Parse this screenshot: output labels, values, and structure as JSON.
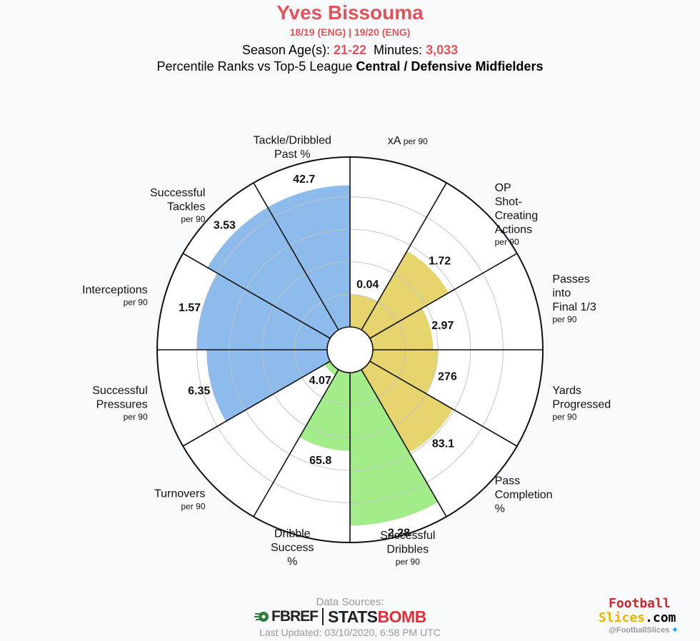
{
  "header": {
    "title": "Yves Bissouma",
    "seasons": "18/19 (ENG)  | 19/20 (ENG)",
    "season_age_label": "Season Age(s):",
    "season_age_value": "21-22",
    "minutes_label": "Minutes:",
    "minutes_value": "3,033",
    "subtitle_prefix": "Percentile Ranks vs Top-5 League",
    "subtitle_bold": "Central / Defensive Midfielders"
  },
  "chart_data": {
    "type": "polar-bar",
    "start_angle_deg": -90,
    "direction": "clockwise",
    "radius_range": [
      0,
      100
    ],
    "grid": true,
    "categories": [
      {
        "label": [
          "xA"
        ],
        "per90": "per 90",
        "value_label": "0.04",
        "percentile": 20,
        "group": "attacking"
      },
      {
        "label": [
          "OP",
          "Shot-",
          "Creating",
          "Actions"
        ],
        "per90": "per 90",
        "value_label": "1.72",
        "percentile": 56,
        "group": "attacking"
      },
      {
        "label": [
          "Passes",
          "into",
          "Final 1/3"
        ],
        "per90": "per 90",
        "value_label": "2.97",
        "percentile": 37,
        "group": "possession"
      },
      {
        "label": [
          "Yards",
          "Progressed"
        ],
        "per90": "per 90",
        "value_label": "276",
        "percentile": 40,
        "group": "possession"
      },
      {
        "label": [
          "Pass",
          "Completion",
          "%"
        ],
        "per90": "",
        "value_label": "83.1",
        "percentile": 59,
        "group": "possession"
      },
      {
        "label": [
          "Successful",
          "Dribbles"
        ],
        "per90": "per 90",
        "value_label": "2.28",
        "percentile": 94,
        "group": "dribbling"
      },
      {
        "label": [
          "Dribble",
          "Success",
          "%"
        ],
        "per90": "",
        "value_label": "65.8",
        "percentile": 48,
        "group": "dribbling"
      },
      {
        "label": [
          "Turnovers"
        ],
        "per90": "per 90",
        "value_label": "4.07",
        "percentile": 4,
        "group": "dribbling"
      },
      {
        "label": [
          "Successful",
          "Pressures"
        ],
        "per90": "per 90",
        "value_label": "6.35",
        "percentile": 74,
        "group": "defending"
      },
      {
        "label": [
          "Interceptions"
        ],
        "per90": "per 90",
        "value_label": "1.57",
        "percentile": 80,
        "group": "defending"
      },
      {
        "label": [
          "Successful",
          "Tackles"
        ],
        "per90": "per 90",
        "value_label": "3.53",
        "percentile": 87,
        "group": "defending"
      },
      {
        "label": [
          "Tackle/Dribbled",
          "Past %"
        ],
        "per90": "",
        "value_label": "42.7",
        "percentile": 87,
        "group": "defending"
      }
    ],
    "group_colors": {
      "attacking": "#e6d56f",
      "possession": "#e6d56f",
      "dribbling": "#a3ec8a",
      "defending": "#8dbcec"
    }
  },
  "footer": {
    "sources_label": "Data Sources:",
    "fbref": "FBREF",
    "statsbomb_a": "STATS",
    "statsbomb_b": "BOMB",
    "updated": "Last Updated: 03/10/2020, 6:58 PM UTC",
    "brand_line1": "Football",
    "brand_line2a": "Slices",
    "brand_line2b": ".com",
    "handle": "@FootballSlices",
    "twitter_icon": "twitter-bird-icon"
  }
}
